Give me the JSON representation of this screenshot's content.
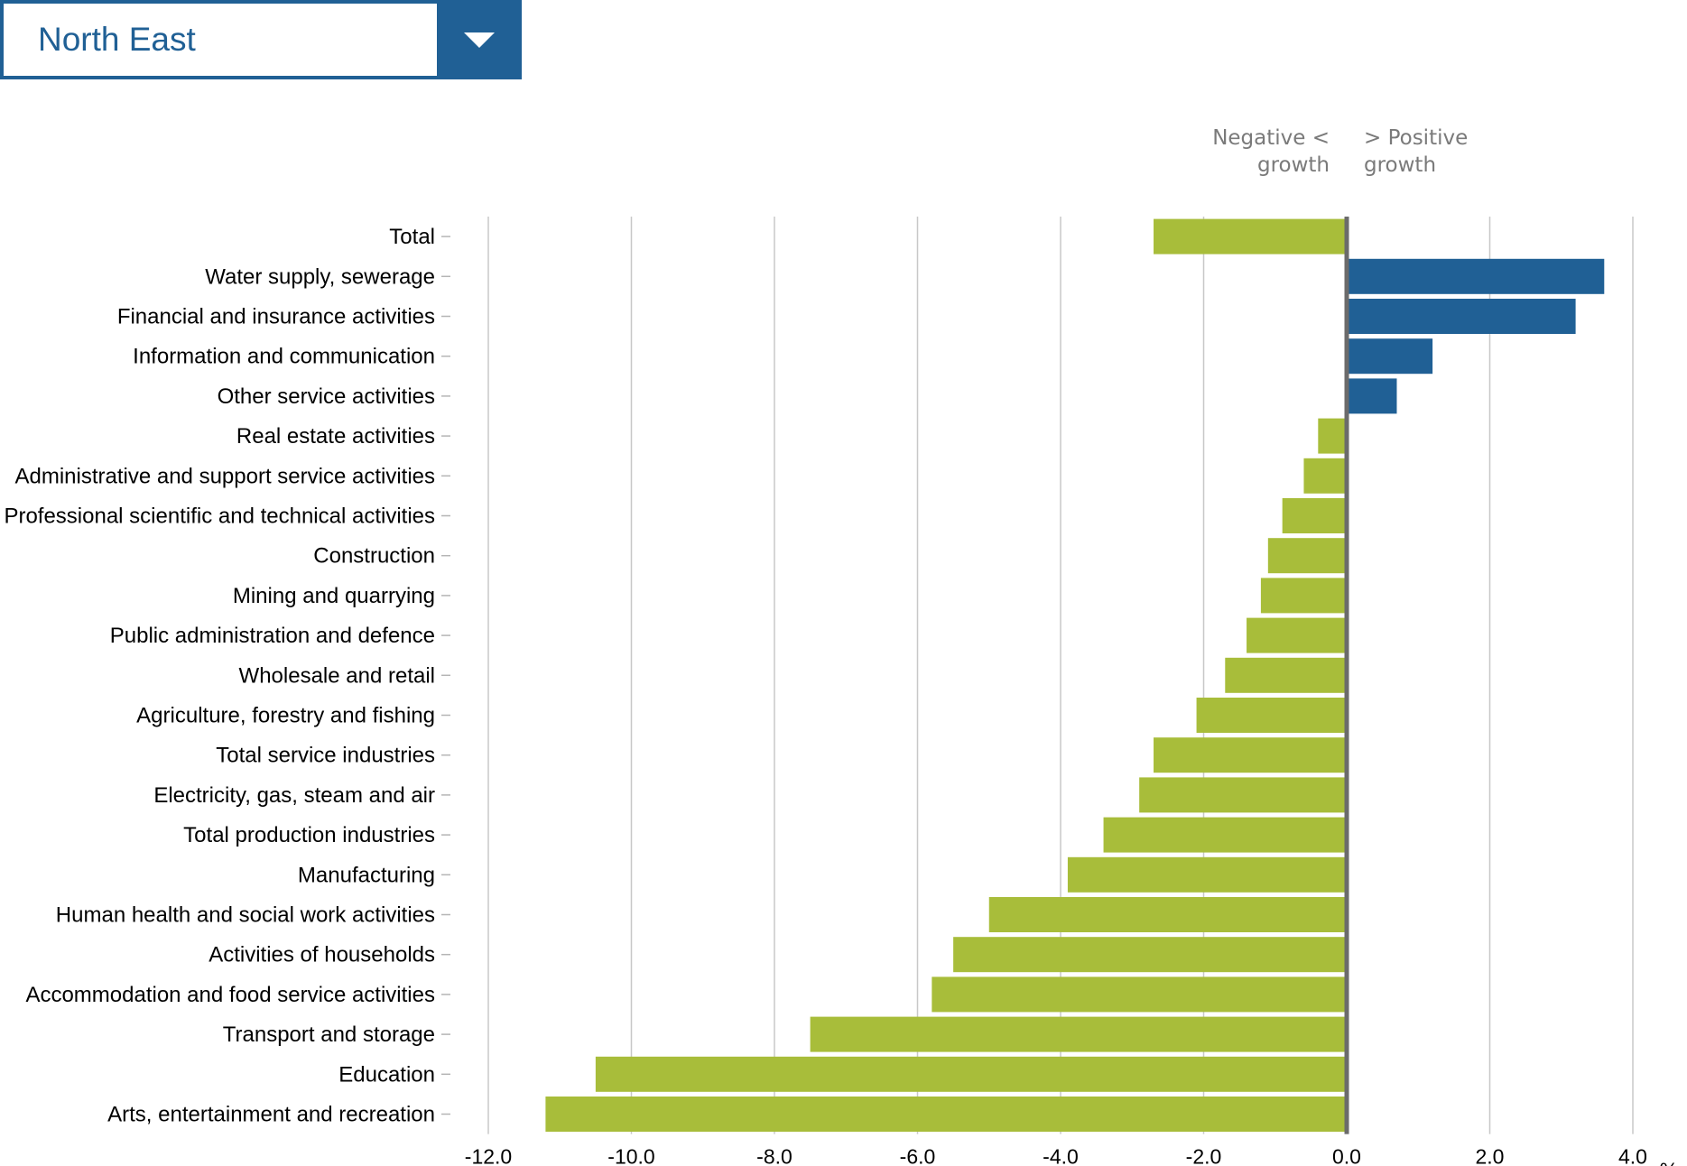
{
  "selector": {
    "value": "North East",
    "arrow_icon": "triangle-down-icon",
    "color": "#206095"
  },
  "annotations": {
    "negative_line1": "Negative <",
    "negative_line2": "growth",
    "positive_line1": "> Positive",
    "positive_line2": "growth"
  },
  "chart_data": {
    "type": "bar",
    "orientation": "horizontal",
    "unit_label": "%",
    "categories": [
      "Total",
      "Water supply, sewerage",
      "Financial and insurance activities",
      "Information and communication",
      "Other service activities",
      "Real estate activities",
      "Administrative and support service activities",
      "Professional scientific and technical activities",
      "Construction",
      "Mining and quarrying",
      "Public administration and defence",
      "Wholesale and retail",
      "Agriculture, forestry and fishing",
      "Total service industries",
      "Electricity, gas, steam and air",
      "Total production industries",
      "Manufacturing",
      "Human health and social work activities",
      "Activities of households",
      "Accommodation and food service activities",
      "Transport and storage",
      "Education",
      "Arts, entertainment and recreation"
    ],
    "values": [
      -2.7,
      3.6,
      3.2,
      1.2,
      0.7,
      -0.4,
      -0.6,
      -0.9,
      -1.1,
      -1.2,
      -1.4,
      -1.7,
      -2.1,
      -2.7,
      -2.9,
      -3.4,
      -3.9,
      -5.0,
      -5.5,
      -5.8,
      -7.5,
      -10.5,
      -11.2
    ],
    "xlim": [
      -12,
      4
    ],
    "xticks": [
      -12,
      -10,
      -8,
      -6,
      -4,
      -2,
      0,
      2,
      4
    ],
    "tick_labels": [
      "-12.0",
      "-10.0",
      "-8.0",
      "-6.0",
      "-4.0",
      "-2.0",
      "0.0",
      "2.0",
      "4.0"
    ],
    "grid": true,
    "colors": {
      "positive": "#206095",
      "negative": "#a8bd3a",
      "zero_line": "#6b6b6b",
      "grid": "#c8c8c8"
    }
  }
}
